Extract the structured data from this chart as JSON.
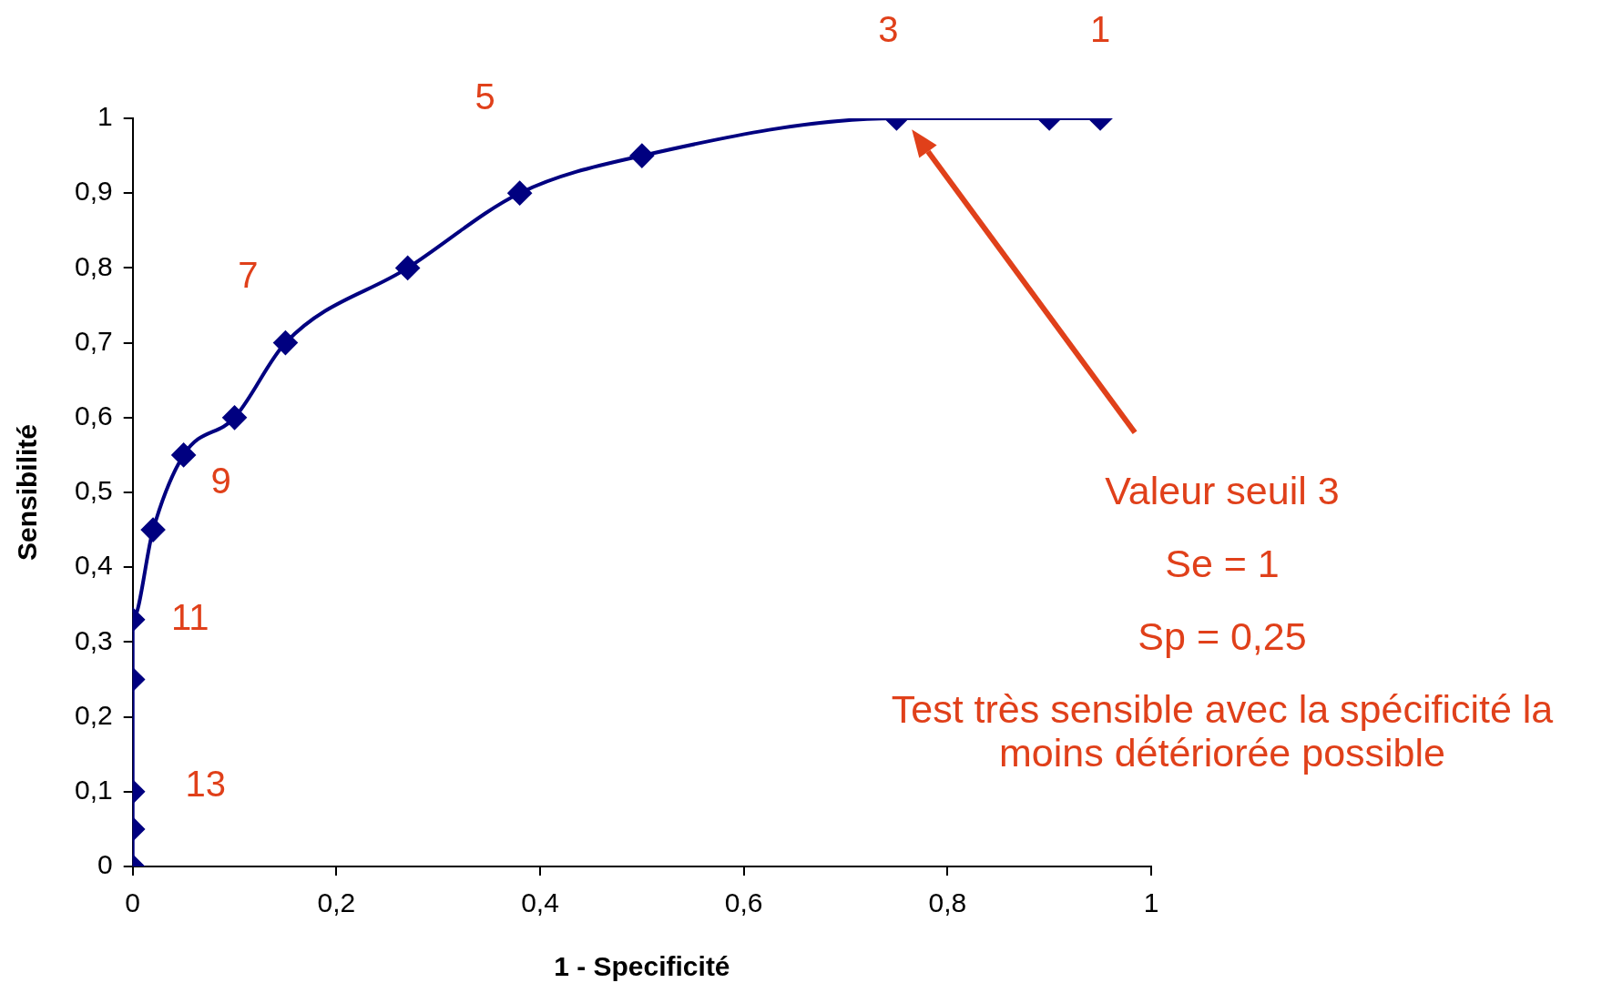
{
  "chart_data": {
    "type": "line",
    "xlabel": "1 - Specificité",
    "ylabel": "Sensibilité",
    "x": [
      0,
      0,
      0,
      0,
      0,
      0.02,
      0.05,
      0.1,
      0.15,
      0.27,
      0.38,
      0.5,
      0.75,
      0.9,
      0.95
    ],
    "series": [
      {
        "color": "#000080",
        "values": [
          0,
          0.05,
          0.1,
          0.25,
          0.33,
          0.45,
          0.55,
          0.6,
          0.7,
          0.8,
          0.9,
          0.95,
          1,
          1,
          1
        ]
      }
    ],
    "xlim": [
      0,
      1
    ],
    "ylim": [
      0,
      1
    ],
    "xticks": [
      0,
      {
        "value": 0.2,
        "label": "0,2"
      },
      {
        "value": 0.4,
        "label": "0,4"
      },
      {
        "value": 0.6,
        "label": "0,6"
      },
      {
        "value": 0.8,
        "label": "0,8"
      },
      1
    ],
    "yticks": [
      0,
      {
        "value": 0.1,
        "label": "0,1"
      },
      {
        "value": 0.2,
        "label": "0,2"
      },
      {
        "value": 0.3,
        "label": "0,3"
      },
      {
        "value": 0.4,
        "label": "0,4"
      },
      {
        "value": 0.5,
        "label": "0,5"
      },
      {
        "value": 0.6,
        "label": "0,6"
      },
      {
        "value": 0.7,
        "label": "0,7"
      },
      {
        "value": 0.8,
        "label": "0,8"
      },
      {
        "value": 0.9,
        "label": "0,9"
      },
      1
    ],
    "grid": false,
    "legend": false,
    "marker": "diamond",
    "line_style": "solid",
    "annotations": [
      {
        "text": "3",
        "x": 0.75,
        "y": 1
      },
      {
        "text": "1",
        "x": 0.95,
        "y": 1
      },
      {
        "text": "5",
        "x": 0.38,
        "y": 0.9
      },
      {
        "text": "7",
        "x": 0.15,
        "y": 0.7
      },
      {
        "text": "9",
        "x": 0.05,
        "y": 0.55
      },
      {
        "text": "11",
        "x": 0,
        "y": 0.33
      },
      {
        "text": "13",
        "x": 0,
        "y": 0.1
      },
      "Valeur seuil 3",
      "Se = 1",
      "Sp = 0,25",
      "Test très sensible avec la spécificité la moins détériorée possible"
    ]
  }
}
